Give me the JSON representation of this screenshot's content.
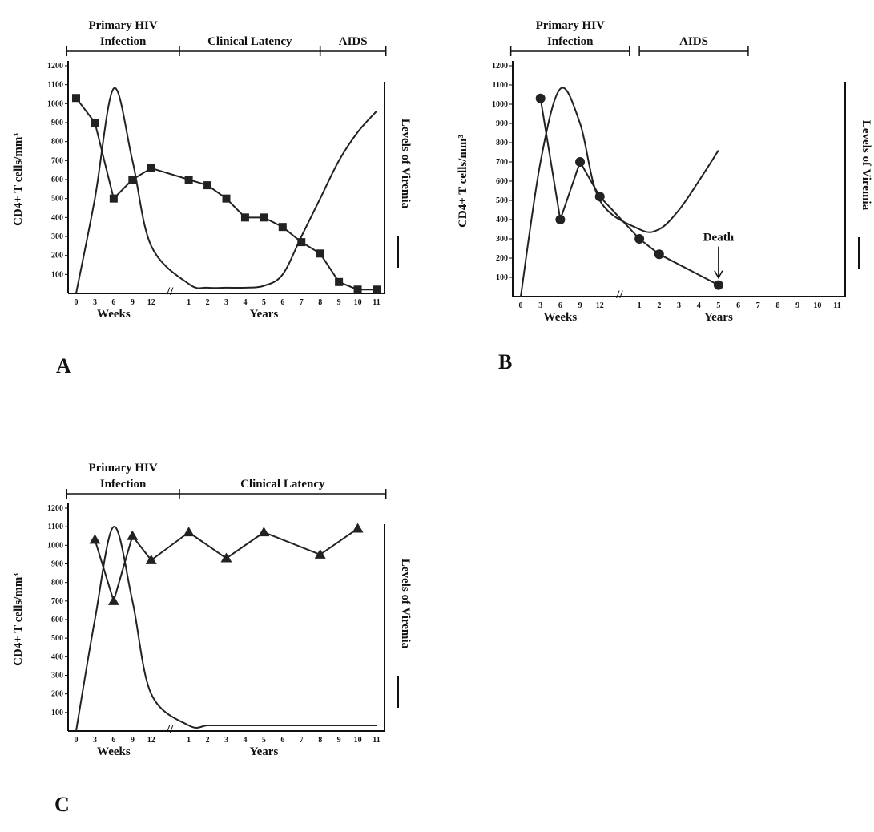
{
  "chart_data": [
    {
      "type": "line",
      "panel": "A",
      "phases": [
        {
          "label": [
            "Primary HIV",
            "Infection"
          ]
        },
        {
          "label": [
            "Clinical Latency"
          ]
        },
        {
          "label": [
            "AIDS"
          ]
        }
      ],
      "categories": [
        "0",
        "3",
        "6",
        "9",
        "12",
        "1",
        "2",
        "3",
        "4",
        "5",
        "6",
        "7",
        "8",
        "9",
        "10",
        "11"
      ],
      "x_label_weeks": "Weeks",
      "x_label_years": "Years",
      "y_label": "CD4+ T cells/mm³",
      "y2_label": "Levels of Viremia",
      "ylim": [
        0,
        1200
      ],
      "yticks": [
        100,
        200,
        300,
        400,
        500,
        600,
        700,
        800,
        900,
        1000,
        1100,
        1200
      ],
      "series": [
        {
          "color": "#222222",
          "marker": "square",
          "values": [
            1030,
            900,
            500,
            600,
            660,
            600,
            570,
            500,
            400,
            400,
            350,
            270,
            210,
            60,
            20,
            20
          ]
        },
        {
          "color": "#222222",
          "marker": "none",
          "values": [
            0,
            500,
            1080,
            700,
            250,
            50,
            30,
            30,
            30,
            40,
            100,
            300,
            500,
            700,
            850,
            960
          ]
        }
      ]
    },
    {
      "type": "line",
      "panel": "B",
      "phases": [
        {
          "label": [
            "Primary HIV",
            "Infection"
          ]
        },
        {
          "label": [
            "AIDS"
          ]
        }
      ],
      "categories": [
        "0",
        "3",
        "6",
        "9",
        "12",
        "1",
        "2",
        "3",
        "4",
        "5",
        "6",
        "7",
        "8",
        "9",
        "10",
        "11"
      ],
      "x_label_weeks": "Weeks",
      "x_label_years": "Years",
      "y_label": "CD4+ T cells/mm³",
      "y2_label": "Levels of Viremia",
      "annotation": "Death",
      "ylim": [
        0,
        1200
      ],
      "yticks": [
        100,
        200,
        300,
        400,
        500,
        600,
        700,
        800,
        900,
        1000,
        1100,
        1200
      ],
      "series": [
        {
          "color": "#222222",
          "marker": "circle",
          "values": [
            null,
            1030,
            400,
            700,
            520,
            300,
            220,
            null,
            null,
            60,
            null,
            null,
            null,
            null,
            null,
            null
          ]
        },
        {
          "color": "#222222",
          "marker": "none",
          "values": [
            0,
            700,
            1080,
            900,
            500,
            350,
            350,
            450,
            600,
            760,
            null,
            null,
            null,
            null,
            null,
            null
          ]
        }
      ]
    },
    {
      "type": "line",
      "panel": "C",
      "phases": [
        {
          "label": [
            "Primary HIV",
            "Infection"
          ]
        },
        {
          "label": [
            "Clinical Latency"
          ]
        }
      ],
      "categories": [
        "0",
        "3",
        "6",
        "9",
        "12",
        "1",
        "2",
        "3",
        "4",
        "5",
        "6",
        "7",
        "8",
        "9",
        "10",
        "11"
      ],
      "x_label_weeks": "Weeks",
      "x_label_years": "Years",
      "y_label": "CD4+ T cells/mm³",
      "y2_label": "Levels of Viremia",
      "ylim": [
        0,
        1200
      ],
      "yticks": [
        100,
        200,
        300,
        400,
        500,
        600,
        700,
        800,
        900,
        1000,
        1100,
        1200
      ],
      "series": [
        {
          "color": "#222222",
          "marker": "triangle",
          "values": [
            null,
            1030,
            700,
            1050,
            920,
            1070,
            null,
            930,
            null,
            1070,
            null,
            null,
            950,
            null,
            1090,
            null
          ]
        },
        {
          "color": "#222222",
          "marker": "none",
          "values": [
            0,
            600,
            1100,
            700,
            200,
            30,
            30,
            30,
            30,
            30,
            30,
            30,
            30,
            30,
            30,
            30
          ]
        }
      ]
    }
  ]
}
